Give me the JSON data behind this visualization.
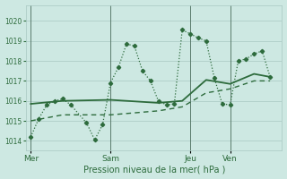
{
  "bg_color": "#cde8e2",
  "grid_color": "#a8c8c2",
  "line_color": "#2d6b3c",
  "xlabel": "Pression niveau de la mer( hPa )",
  "ylim": [
    1013.5,
    1020.8
  ],
  "yticks": [
    1014,
    1015,
    1016,
    1017,
    1018,
    1019,
    1020
  ],
  "xtick_labels": [
    "Mer",
    "Sam",
    "Jeu",
    "Ven"
  ],
  "xtick_positions": [
    0.0,
    0.333,
    0.667,
    0.833
  ],
  "vline_positions": [
    0.0,
    0.333,
    0.667,
    0.833
  ],
  "s1_x": [
    0.0,
    0.033,
    0.067,
    0.1,
    0.133,
    0.167,
    0.233,
    0.267,
    0.3,
    0.333,
    0.367,
    0.4,
    0.433,
    0.467,
    0.5,
    0.533,
    0.567,
    0.6,
    0.633,
    0.667,
    0.7,
    0.733,
    0.767,
    0.8,
    0.833,
    0.867,
    0.9,
    0.933,
    0.967,
    1.0
  ],
  "s1_y": [
    1014.2,
    1015.1,
    1015.8,
    1016.0,
    1016.1,
    1015.8,
    1014.9,
    1014.05,
    1014.8,
    1016.9,
    1017.7,
    1018.85,
    1018.75,
    1017.5,
    1017.0,
    1016.0,
    1015.8,
    1015.85,
    1019.55,
    1019.35,
    1019.15,
    1019.0,
    1017.15,
    1015.85,
    1015.8,
    1018.0,
    1018.1,
    1018.35,
    1018.5,
    1017.2
  ],
  "s2_x": [
    0.0,
    0.133,
    0.333,
    0.533,
    0.633,
    0.733,
    0.833,
    0.933,
    1.0
  ],
  "s2_y": [
    1015.85,
    1016.0,
    1016.05,
    1015.9,
    1016.0,
    1017.05,
    1016.85,
    1017.35,
    1017.2
  ],
  "s3_x": [
    0.0,
    0.133,
    0.333,
    0.533,
    0.633,
    0.733,
    0.833,
    0.933,
    1.0
  ],
  "s3_y": [
    1015.0,
    1015.3,
    1015.3,
    1015.5,
    1015.7,
    1016.4,
    1016.6,
    1017.0,
    1017.0
  ]
}
